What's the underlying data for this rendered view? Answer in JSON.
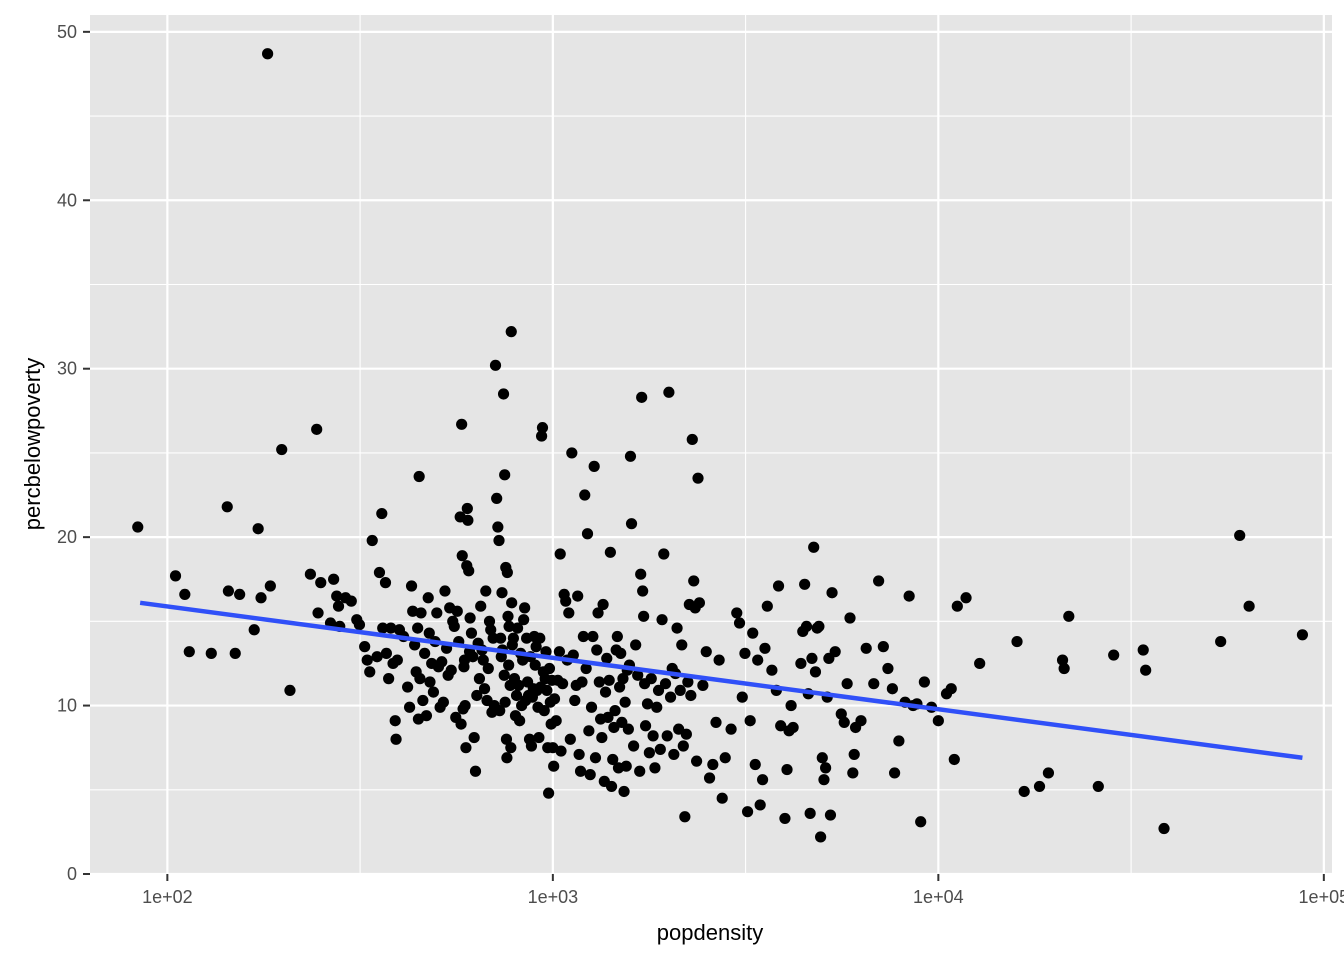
{
  "chart_data": {
    "type": "scatter",
    "xlabel": "popdensity",
    "ylabel": "percbelowpoverty",
    "x_scale": "log10",
    "xlim": [
      63,
      105000
    ],
    "ylim": [
      0,
      51
    ],
    "x_ticks": [
      100,
      1000,
      10000,
      100000
    ],
    "x_tick_labels": [
      "1e+02",
      "1e+03",
      "1e+04",
      "1e+05"
    ],
    "y_ticks": [
      0,
      10,
      20,
      30,
      40,
      50
    ],
    "y_tick_labels": [
      "0",
      "10",
      "20",
      "30",
      "40",
      "50"
    ],
    "grid": true,
    "legend": "none",
    "colors": {
      "panel": "#e5e5e5",
      "grid": "#ffffff",
      "points": "#000000",
      "trend": "#3050f8"
    },
    "trend_line": {
      "method": "linear fit",
      "x": [
        85,
        88000
      ],
      "y": [
        16.1,
        6.9
      ]
    },
    "points": [
      [
        83.8,
        20.6
      ],
      [
        105,
        17.7
      ],
      [
        111,
        16.6
      ],
      [
        114,
        13.2
      ],
      [
        130,
        13.1
      ],
      [
        143,
        21.8
      ],
      [
        144,
        16.8
      ],
      [
        150,
        13.1
      ],
      [
        154,
        16.6
      ],
      [
        168,
        14.5
      ],
      [
        172,
        20.5
      ],
      [
        175,
        16.4
      ],
      [
        185,
        17.1
      ],
      [
        182,
        48.7
      ],
      [
        198,
        25.2
      ],
      [
        208,
        10.9
      ],
      [
        235,
        17.8
      ],
      [
        244,
        26.4
      ],
      [
        246,
        15.5
      ],
      [
        250,
        17.3
      ],
      [
        265,
        14.9
      ],
      [
        270,
        17.5
      ],
      [
        275,
        16.5
      ],
      [
        278,
        15.9
      ],
      [
        280,
        14.7
      ],
      [
        290,
        16.4
      ],
      [
        300,
        16.2
      ],
      [
        310,
        15.1
      ],
      [
        315,
        14.8
      ],
      [
        325,
        13.5
      ],
      [
        330,
        12.7
      ],
      [
        335,
        12.0
      ],
      [
        340,
        19.8
      ],
      [
        350,
        12.9
      ],
      [
        355,
        17.9
      ],
      [
        360,
        21.4
      ],
      [
        362,
        14.6
      ],
      [
        368,
        17.3
      ],
      [
        370,
        13.1
      ],
      [
        375,
        11.6
      ],
      [
        380,
        14.6
      ],
      [
        385,
        12.5
      ],
      [
        390,
        9.1
      ],
      [
        392,
        8.0
      ],
      [
        395,
        12.7
      ],
      [
        400,
        14.5
      ],
      [
        410,
        14.1
      ],
      [
        420,
        11.1
      ],
      [
        425,
        9.9
      ],
      [
        430,
        17.1
      ],
      [
        433,
        15.6
      ],
      [
        438,
        13.6
      ],
      [
        442,
        12.0
      ],
      [
        446,
        14.6
      ],
      [
        448,
        9.2
      ],
      [
        450,
        23.6
      ],
      [
        452,
        11.6
      ],
      [
        455,
        15.5
      ],
      [
        460,
        10.3
      ],
      [
        465,
        13.1
      ],
      [
        470,
        9.4
      ],
      [
        475,
        16.4
      ],
      [
        478,
        14.3
      ],
      [
        480,
        11.4
      ],
      [
        485,
        12.5
      ],
      [
        490,
        10.8
      ],
      [
        495,
        13.8
      ],
      [
        500,
        15.5
      ],
      [
        505,
        12.3
      ],
      [
        510,
        9.9
      ],
      [
        515,
        12.6
      ],
      [
        520,
        10.2
      ],
      [
        525,
        16.8
      ],
      [
        530,
        13.4
      ],
      [
        535,
        11.8
      ],
      [
        540,
        15.8
      ],
      [
        545,
        12.1
      ],
      [
        550,
        15.0
      ],
      [
        555,
        14.7
      ],
      [
        560,
        9.3
      ],
      [
        565,
        15.6
      ],
      [
        570,
        13.8
      ],
      [
        575,
        21.2
      ],
      [
        578,
        8.9
      ],
      [
        580,
        26.7
      ],
      [
        582,
        18.9
      ],
      [
        585,
        9.8
      ],
      [
        588,
        12.3
      ],
      [
        590,
        12.7
      ],
      [
        592,
        10.0
      ],
      [
        595,
        7.5
      ],
      [
        598,
        18.3
      ],
      [
        600,
        21.7
      ],
      [
        602,
        21.0
      ],
      [
        605,
        18.0
      ],
      [
        608,
        13.2
      ],
      [
        610,
        15.2
      ],
      [
        615,
        14.3
      ],
      [
        620,
        12.9
      ],
      [
        625,
        8.1
      ],
      [
        630,
        6.1
      ],
      [
        635,
        10.6
      ],
      [
        640,
        13.7
      ],
      [
        645,
        11.6
      ],
      [
        650,
        15.9
      ],
      [
        655,
        13.3
      ],
      [
        660,
        12.7
      ],
      [
        665,
        11.0
      ],
      [
        670,
        16.8
      ],
      [
        675,
        10.3
      ],
      [
        680,
        12.2
      ],
      [
        685,
        15.0
      ],
      [
        690,
        14.5
      ],
      [
        695,
        9.6
      ],
      [
        700,
        14.0
      ],
      [
        705,
        10.0
      ],
      [
        710,
        30.2
      ],
      [
        715,
        22.3
      ],
      [
        720,
        20.6
      ],
      [
        725,
        19.8
      ],
      [
        728,
        9.7
      ],
      [
        732,
        14.0
      ],
      [
        735,
        12.9
      ],
      [
        738,
        16.7
      ],
      [
        740,
        13.3
      ],
      [
        745,
        28.5
      ],
      [
        748,
        11.8
      ],
      [
        750,
        23.7
      ],
      [
        752,
        10.2
      ],
      [
        755,
        18.2
      ],
      [
        758,
        8.0
      ],
      [
        760,
        6.9
      ],
      [
        762,
        17.9
      ],
      [
        765,
        15.3
      ],
      [
        768,
        12.4
      ],
      [
        770,
        14.7
      ],
      [
        775,
        11.2
      ],
      [
        778,
        7.5
      ],
      [
        780,
        32.2
      ],
      [
        782,
        16.1
      ],
      [
        785,
        13.6
      ],
      [
        790,
        14.0
      ],
      [
        795,
        11.6
      ],
      [
        800,
        9.4
      ],
      [
        805,
        10.6
      ],
      [
        810,
        14.6
      ],
      [
        815,
        11.2
      ],
      [
        820,
        9.1
      ],
      [
        825,
        13.1
      ],
      [
        830,
        10.0
      ],
      [
        835,
        12.7
      ],
      [
        840,
        15.1
      ],
      [
        845,
        15.8
      ],
      [
        850,
        10.3
      ],
      [
        855,
        14.0
      ],
      [
        860,
        11.4
      ],
      [
        865,
        10.6
      ],
      [
        870,
        8.0
      ],
      [
        875,
        12.9
      ],
      [
        880,
        7.6
      ],
      [
        885,
        10.5
      ],
      [
        890,
        11.0
      ],
      [
        895,
        14.1
      ],
      [
        900,
        12.4
      ],
      [
        905,
        13.5
      ],
      [
        910,
        10.9
      ],
      [
        915,
        9.9
      ],
      [
        920,
        8.1
      ],
      [
        925,
        14.0
      ],
      [
        930,
        11.1
      ],
      [
        935,
        26.0
      ],
      [
        940,
        26.5
      ],
      [
        945,
        12.0
      ],
      [
        950,
        9.7
      ],
      [
        955,
        11.6
      ],
      [
        960,
        13.2
      ],
      [
        965,
        10.9
      ],
      [
        970,
        7.5
      ],
      [
        975,
        4.8
      ],
      [
        980,
        12.2
      ],
      [
        985,
        10.2
      ],
      [
        990,
        8.9
      ],
      [
        995,
        11.5
      ],
      [
        1000,
        7.5
      ],
      [
        1005,
        6.4
      ],
      [
        1010,
        10.4
      ],
      [
        1020,
        9.1
      ],
      [
        1030,
        11.5
      ],
      [
        1040,
        13.2
      ],
      [
        1045,
        19.0
      ],
      [
        1050,
        7.3
      ],
      [
        1060,
        11.3
      ],
      [
        1070,
        16.6
      ],
      [
        1080,
        16.2
      ],
      [
        1090,
        12.7
      ],
      [
        1100,
        15.5
      ],
      [
        1110,
        8.0
      ],
      [
        1120,
        25.0
      ],
      [
        1130,
        13.0
      ],
      [
        1140,
        10.3
      ],
      [
        1150,
        11.2
      ],
      [
        1160,
        16.5
      ],
      [
        1170,
        7.1
      ],
      [
        1180,
        6.1
      ],
      [
        1190,
        11.4
      ],
      [
        1200,
        14.1
      ],
      [
        1210,
        22.5
      ],
      [
        1220,
        12.2
      ],
      [
        1230,
        20.2
      ],
      [
        1240,
        8.5
      ],
      [
        1250,
        5.9
      ],
      [
        1260,
        9.9
      ],
      [
        1270,
        14.1
      ],
      [
        1280,
        24.2
      ],
      [
        1290,
        6.9
      ],
      [
        1300,
        13.3
      ],
      [
        1310,
        15.5
      ],
      [
        1320,
        11.4
      ],
      [
        1330,
        9.2
      ],
      [
        1340,
        8.1
      ],
      [
        1350,
        16.0
      ],
      [
        1360,
        5.5
      ],
      [
        1370,
        10.8
      ],
      [
        1380,
        12.8
      ],
      [
        1390,
        9.3
      ],
      [
        1400,
        11.5
      ],
      [
        1410,
        19.1
      ],
      [
        1420,
        5.2
      ],
      [
        1430,
        6.8
      ],
      [
        1440,
        8.7
      ],
      [
        1450,
        9.7
      ],
      [
        1460,
        13.3
      ],
      [
        1470,
        14.1
      ],
      [
        1480,
        6.3
      ],
      [
        1490,
        11.1
      ],
      [
        1500,
        13.1
      ],
      [
        1510,
        9.0
      ],
      [
        1520,
        11.6
      ],
      [
        1530,
        4.9
      ],
      [
        1540,
        10.2
      ],
      [
        1550,
        6.4
      ],
      [
        1560,
        12.1
      ],
      [
        1570,
        8.6
      ],
      [
        1580,
        12.4
      ],
      [
        1590,
        24.8
      ],
      [
        1600,
        20.8
      ],
      [
        1620,
        7.6
      ],
      [
        1640,
        13.6
      ],
      [
        1660,
        11.8
      ],
      [
        1680,
        6.1
      ],
      [
        1690,
        17.8
      ],
      [
        1700,
        28.3
      ],
      [
        1710,
        16.8
      ],
      [
        1720,
        15.3
      ],
      [
        1730,
        11.3
      ],
      [
        1740,
        8.8
      ],
      [
        1760,
        10.1
      ],
      [
        1780,
        7.2
      ],
      [
        1800,
        11.6
      ],
      [
        1820,
        8.2
      ],
      [
        1840,
        6.3
      ],
      [
        1860,
        9.9
      ],
      [
        1880,
        10.9
      ],
      [
        1900,
        7.4
      ],
      [
        1920,
        15.1
      ],
      [
        1940,
        19.0
      ],
      [
        1960,
        11.3
      ],
      [
        1980,
        8.2
      ],
      [
        2000,
        28.6
      ],
      [
        2020,
        10.5
      ],
      [
        2040,
        12.2
      ],
      [
        2060,
        7.1
      ],
      [
        2080,
        11.9
      ],
      [
        2100,
        14.6
      ],
      [
        2120,
        8.6
      ],
      [
        2140,
        10.9
      ],
      [
        2160,
        13.6
      ],
      [
        2180,
        7.6
      ],
      [
        2200,
        3.4
      ],
      [
        2220,
        8.3
      ],
      [
        2240,
        11.4
      ],
      [
        2260,
        16.0
      ],
      [
        2280,
        10.6
      ],
      [
        2300,
        25.8
      ],
      [
        2320,
        17.4
      ],
      [
        2340,
        15.8
      ],
      [
        2360,
        6.7
      ],
      [
        2380,
        23.5
      ],
      [
        2400,
        16.1
      ],
      [
        2450,
        11.2
      ],
      [
        2500,
        13.2
      ],
      [
        2550,
        5.7
      ],
      [
        2600,
        6.5
      ],
      [
        2650,
        9.0
      ],
      [
        2700,
        12.7
      ],
      [
        2750,
        4.5
      ],
      [
        2800,
        6.9
      ],
      [
        2900,
        8.6
      ],
      [
        3000,
        15.5
      ],
      [
        3050,
        14.9
      ],
      [
        3100,
        10.5
      ],
      [
        3150,
        13.1
      ],
      [
        3200,
        3.7
      ],
      [
        3250,
        9.1
      ],
      [
        3300,
        14.3
      ],
      [
        3350,
        6.5
      ],
      [
        3400,
        12.7
      ],
      [
        3450,
        4.1
      ],
      [
        3500,
        5.6
      ],
      [
        3550,
        13.4
      ],
      [
        3600,
        15.9
      ],
      [
        3700,
        12.1
      ],
      [
        3800,
        10.9
      ],
      [
        3850,
        17.1
      ],
      [
        3900,
        8.8
      ],
      [
        4000,
        3.3
      ],
      [
        4050,
        6.2
      ],
      [
        4100,
        8.5
      ],
      [
        4150,
        10.0
      ],
      [
        4200,
        8.7
      ],
      [
        4400,
        12.5
      ],
      [
        4450,
        14.4
      ],
      [
        4500,
        17.2
      ],
      [
        4550,
        14.7
      ],
      [
        4600,
        10.7
      ],
      [
        4650,
        3.6
      ],
      [
        4700,
        12.8
      ],
      [
        4750,
        19.4
      ],
      [
        4800,
        12.0
      ],
      [
        4850,
        14.6
      ],
      [
        4900,
        14.7
      ],
      [
        4950,
        2.2
      ],
      [
        5000,
        6.9
      ],
      [
        5050,
        5.6
      ],
      [
        5100,
        6.3
      ],
      [
        5150,
        10.5
      ],
      [
        5200,
        12.8
      ],
      [
        5250,
        3.5
      ],
      [
        5300,
        16.7
      ],
      [
        5400,
        13.2
      ],
      [
        5600,
        9.5
      ],
      [
        5700,
        9.0
      ],
      [
        5800,
        11.3
      ],
      [
        5900,
        15.2
      ],
      [
        6000,
        6.0
      ],
      [
        6050,
        7.1
      ],
      [
        6100,
        8.7
      ],
      [
        6300,
        9.1
      ],
      [
        6500,
        13.4
      ],
      [
        6800,
        11.3
      ],
      [
        7000,
        17.4
      ],
      [
        7200,
        13.5
      ],
      [
        7400,
        12.2
      ],
      [
        7600,
        11.0
      ],
      [
        7700,
        6.0
      ],
      [
        7900,
        7.9
      ],
      [
        8200,
        10.2
      ],
      [
        8400,
        16.5
      ],
      [
        8600,
        10.0
      ],
      [
        8800,
        10.1
      ],
      [
        9000,
        3.1
      ],
      [
        9200,
        11.4
      ],
      [
        9600,
        9.9
      ],
      [
        10000,
        9.1
      ],
      [
        10500,
        10.7
      ],
      [
        10800,
        11.0
      ],
      [
        11000,
        6.8
      ],
      [
        11200,
        15.9
      ],
      [
        11800,
        16.4
      ],
      [
        12800,
        12.5
      ],
      [
        16000,
        13.8
      ],
      [
        16700,
        4.9
      ],
      [
        18300,
        5.2
      ],
      [
        19300,
        6.0
      ],
      [
        21000,
        12.7
      ],
      [
        21200,
        12.2
      ],
      [
        21800,
        15.3
      ],
      [
        26000,
        5.2
      ],
      [
        28500,
        13.0
      ],
      [
        34000,
        13.3
      ],
      [
        34500,
        12.1
      ],
      [
        38500,
        2.7
      ],
      [
        54000,
        13.8
      ],
      [
        60500,
        20.1
      ],
      [
        64000,
        15.9
      ],
      [
        88000,
        14.2
      ]
    ]
  }
}
